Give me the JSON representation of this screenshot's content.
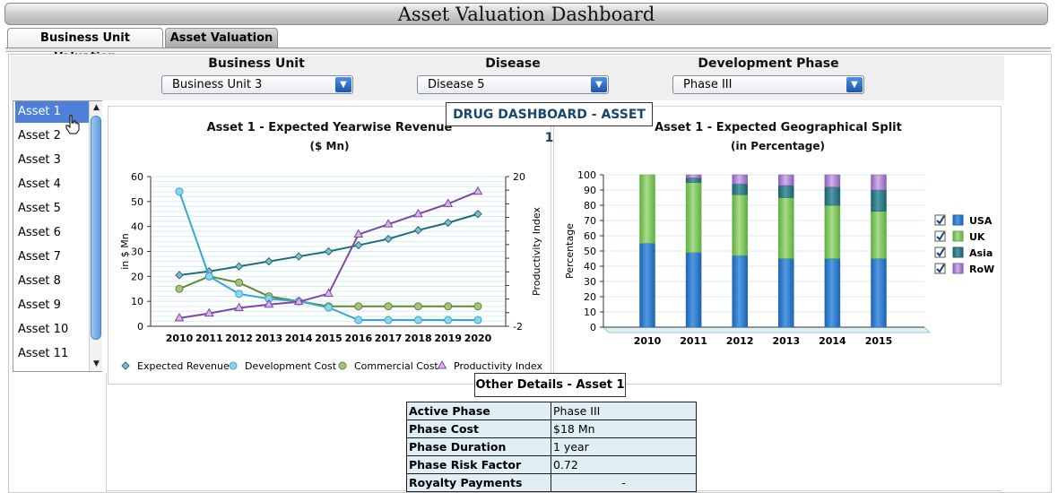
{
  "header": {
    "title": "Asset Valuation Dashboard"
  },
  "tabs": [
    {
      "label": "Business Unit Valuation",
      "active": false
    },
    {
      "label": "Asset Valuation",
      "active": true
    }
  ],
  "filters": {
    "business_unit": {
      "label": "Business Unit",
      "value": "Business Unit 3"
    },
    "disease": {
      "label": "Disease",
      "value": "Disease 5"
    },
    "development_phase": {
      "label": "Development Phase",
      "value": "Phase III"
    }
  },
  "asset_list": {
    "items": [
      "Asset 1",
      "Asset 2",
      "Asset 3",
      "Asset 4",
      "Asset 5",
      "Asset 6",
      "Asset 7",
      "Asset 8",
      "Asset 9",
      "Asset 10",
      "Asset 11"
    ],
    "selected_index": 0
  },
  "dashboard": {
    "title": "DRUG DASHBOARD - ASSET 1"
  },
  "colors": {
    "expected_revenue": "#1c6b80",
    "development_cost": "#36a8cf",
    "commercial_cost": "#5e8a2e",
    "productivity_index": "#7e45a6",
    "usa": "#2f7fd0",
    "uk": "#8ccc6a",
    "asia": "#2f7f8f",
    "row": "#b48fd9",
    "selected": "#4f80d8"
  },
  "chart_data": [
    {
      "type": "line",
      "title": "Asset 1 - Expected Yearwise Revenue",
      "subtitle": "($ Mn)",
      "ylabel": "in $ Mn",
      "y2label": "Productivity Index",
      "x": [
        "2010",
        "2011",
        "2012",
        "2013",
        "2014",
        "2015",
        "2016",
        "2017",
        "2018",
        "2019",
        "2020"
      ],
      "ylim": [
        0,
        60
      ],
      "yticks": [
        "0",
        "10",
        "20",
        "30",
        "40",
        "50",
        "60"
      ],
      "y2lim": [
        -2,
        20
      ],
      "y2ticks": [
        "-2",
        "20"
      ],
      "series": [
        {
          "name": "Expected Revenue",
          "axis": "left",
          "values": [
            20.5,
            22,
            24,
            26,
            28,
            30,
            32.5,
            35,
            38.5,
            41.5,
            45
          ]
        },
        {
          "name": "Development Cost",
          "axis": "left",
          "values": [
            54,
            20,
            13,
            11,
            10,
            7.5,
            2.5,
            2.5,
            2.5,
            2.5,
            2.5
          ]
        },
        {
          "name": "Commercial Cost",
          "axis": "left",
          "values": [
            15,
            20,
            17.5,
            12,
            10,
            8,
            8,
            8,
            8,
            8,
            8
          ]
        },
        {
          "name": "Productivity Index",
          "axis": "right",
          "values": [
            -0.8,
            -0.1,
            0.7,
            1.2,
            1.6,
            2.8,
            11.5,
            13,
            14.5,
            16,
            17.8
          ]
        }
      ]
    },
    {
      "type": "bar",
      "stacked": true,
      "title": "Asset 1 - Expected Geographical Split",
      "subtitle": "(in Percentage)",
      "ylabel": "Percentage",
      "categories": [
        "2010",
        "2011",
        "2012",
        "2013",
        "2014",
        "2015"
      ],
      "ylim": [
        0,
        100
      ],
      "yticks": [
        "0",
        "10",
        "20",
        "30",
        "40",
        "50",
        "60",
        "70",
        "80",
        "90",
        "100"
      ],
      "series": [
        {
          "name": "USA",
          "values": [
            55,
            49,
            47,
            45,
            45,
            45
          ]
        },
        {
          "name": "UK",
          "values": [
            45,
            46,
            40,
            40,
            35,
            31
          ]
        },
        {
          "name": "Asia",
          "values": [
            0,
            3,
            7,
            8,
            12,
            14
          ]
        },
        {
          "name": "RoW",
          "values": [
            0,
            2,
            6,
            7,
            8,
            10
          ]
        }
      ]
    }
  ],
  "other_details": {
    "title": "Other Details - Asset 1",
    "rows": [
      {
        "key": "Active Phase",
        "value": "Phase III"
      },
      {
        "key": "Phase Cost",
        "value": "$18 Mn"
      },
      {
        "key": "Phase Duration",
        "value": "1 year"
      },
      {
        "key": "Phase Risk Factor",
        "value": "0.72"
      },
      {
        "key": "Royalty Payments",
        "value": "-"
      }
    ]
  }
}
